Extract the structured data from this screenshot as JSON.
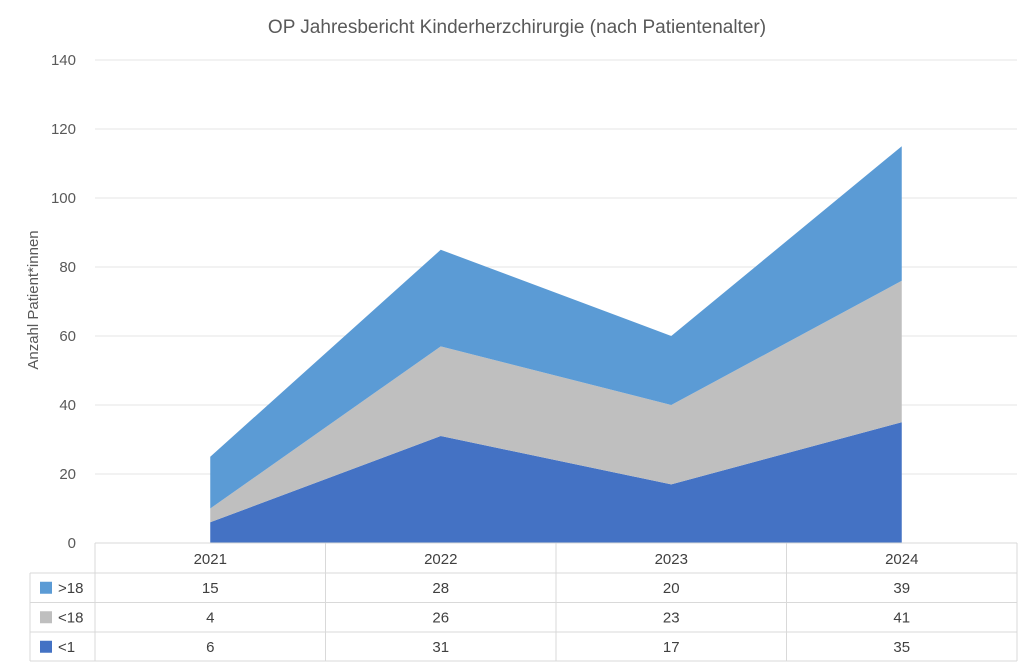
{
  "chart_data": {
    "type": "area",
    "stacked": true,
    "title": "OP Jahresbericht Kinderherzchirurgie (nach Patientenalter)",
    "ylabel": "Anzahl Patient*innen",
    "xlabel": "",
    "categories": [
      "2021",
      "2022",
      "2023",
      "2024"
    ],
    "ylim": [
      0,
      140
    ],
    "yticks": [
      0,
      20,
      40,
      60,
      80,
      100,
      120,
      140
    ],
    "grid": true,
    "legend": "data-table-below",
    "series": [
      {
        "name": "<1",
        "values": [
          6,
          31,
          17,
          35
        ],
        "color": "#4472c4"
      },
      {
        "name": "<18",
        "values": [
          4,
          26,
          23,
          41
        ],
        "color": "#bfbfbf"
      },
      {
        "name": ">18",
        "values": [
          15,
          28,
          20,
          39
        ],
        "color": "#5b9bd5"
      }
    ],
    "table_row_order": [
      ">18",
      "<18",
      "<1"
    ]
  }
}
